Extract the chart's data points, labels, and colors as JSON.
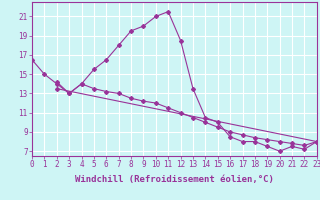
{
  "xlabel": "Windchill (Refroidissement éolien,°C)",
  "background_color": "#cef5f5",
  "line_color": "#993399",
  "grid_color": "#ffffff",
  "xlim": [
    0,
    23
  ],
  "ylim": [
    6.5,
    22.5
  ],
  "xticks": [
    0,
    1,
    2,
    3,
    4,
    5,
    6,
    7,
    8,
    9,
    10,
    11,
    12,
    13,
    14,
    15,
    16,
    17,
    18,
    19,
    20,
    21,
    22,
    23
  ],
  "yticks": [
    7,
    9,
    11,
    13,
    15,
    17,
    19,
    21
  ],
  "line1_x": [
    0,
    1,
    2,
    3,
    4,
    5,
    6,
    7,
    8,
    9,
    10,
    11,
    12,
    13,
    14,
    15,
    16,
    17,
    18,
    19,
    20,
    21,
    22,
    23
  ],
  "line1_y": [
    16.5,
    15.0,
    14.0,
    13.0,
    14.0,
    15.5,
    16.5,
    18.0,
    19.5,
    20.0,
    21.0,
    21.5,
    18.5,
    13.5,
    10.5,
    10.0,
    8.5,
    8.0,
    8.0,
    7.5,
    7.0,
    7.5,
    7.2,
    8.0
  ],
  "line2_x": [
    2,
    3,
    4,
    5,
    6,
    7,
    8,
    9,
    10,
    11,
    12,
    13,
    14,
    15,
    16,
    17,
    18,
    19,
    20,
    21,
    22,
    23
  ],
  "line2_y": [
    14.2,
    13.0,
    14.0,
    13.5,
    13.2,
    13.0,
    12.5,
    12.2,
    12.0,
    11.5,
    11.0,
    10.5,
    10.0,
    9.5,
    9.0,
    8.7,
    8.4,
    8.2,
    8.0,
    7.8,
    7.6,
    8.0
  ],
  "line3_x": [
    2,
    23
  ],
  "line3_y": [
    13.5,
    8.0
  ],
  "tick_fontsize": 5.5,
  "label_fontsize": 6.5,
  "marker": "D",
  "markersize": 2.0
}
